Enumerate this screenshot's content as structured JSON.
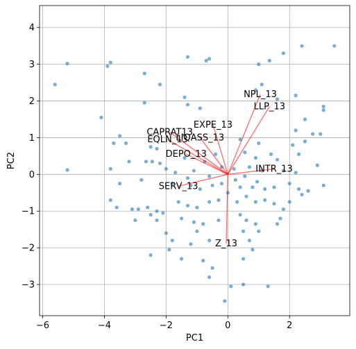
{
  "chart_data": {
    "type": "scatter",
    "subtype": "pca-biplot",
    "title": "",
    "xlabel": "PC1",
    "ylabel": "PC2",
    "xlim": [
      -6.1,
      3.95
    ],
    "ylim": [
      -3.85,
      4.6
    ],
    "xticks": [
      -6,
      -4,
      -2,
      0,
      2
    ],
    "xtick_labels": [
      "−6",
      "−4",
      "−2",
      "0",
      "2"
    ],
    "yticks": [
      -3,
      -2,
      -1,
      0,
      1,
      2,
      3,
      4
    ],
    "ytick_labels": [
      "−3",
      "−2",
      "−1",
      "0",
      "1",
      "2",
      "3",
      "4"
    ],
    "grid": true,
    "point_color": "#1f77b4",
    "arrow_color": "#ff0000",
    "loadings": [
      {
        "name": "NPL_13",
        "x": 1.05,
        "y": 2.18
      },
      {
        "name": "LLP_13",
        "x": 1.35,
        "y": 1.85
      },
      {
        "name": "EXPE_13",
        "x": -0.48,
        "y": 1.35
      },
      {
        "name": "CAPRAT13",
        "x": -1.88,
        "y": 1.15
      },
      {
        "name": "EQLN_13",
        "x": -1.95,
        "y": 0.95
      },
      {
        "name": "LIQASS_13",
        "x": -0.9,
        "y": 1.0
      },
      {
        "name": "DEPO_13",
        "x": -1.35,
        "y": 0.55
      },
      {
        "name": "INTR_13",
        "x": 1.5,
        "y": 0.15
      },
      {
        "name": "SERV_13",
        "x": -1.6,
        "y": -0.32
      },
      {
        "name": "Z_13",
        "x": -0.05,
        "y": -1.88
      }
    ],
    "points": [
      [
        -5.6,
        2.45
      ],
      [
        -5.2,
        3.02
      ],
      [
        -5.2,
        0.12
      ],
      [
        -3.9,
        2.95
      ],
      [
        -3.8,
        3.05
      ],
      [
        -4.1,
        1.55
      ],
      [
        -2.7,
        2.75
      ],
      [
        -2.2,
        2.45
      ],
      [
        -1.3,
        3.2
      ],
      [
        -0.7,
        3.1
      ],
      [
        -0.6,
        3.15
      ],
      [
        -2.7,
        1.95
      ],
      [
        -1.4,
        2.1
      ],
      [
        -1.3,
        1.9
      ],
      [
        -0.9,
        1.8
      ],
      [
        1.0,
        3.0
      ],
      [
        1.35,
        3.1
      ],
      [
        1.8,
        3.3
      ],
      [
        2.4,
        3.5
      ],
      [
        3.45,
        3.5
      ],
      [
        1.1,
        2.45
      ],
      [
        0.9,
        2.3
      ],
      [
        1.6,
        2.05
      ],
      [
        2.2,
        2.15
      ],
      [
        3.1,
        1.75
      ],
      [
        3.1,
        1.85
      ],
      [
        2.5,
        1.5
      ],
      [
        2.2,
        1.2
      ],
      [
        3.0,
        1.1
      ],
      [
        2.75,
        1.1
      ],
      [
        -3.5,
        1.05
      ],
      [
        -3.3,
        0.85
      ],
      [
        -3.7,
        0.85
      ],
      [
        -2.5,
        0.75
      ],
      [
        -2.3,
        0.7
      ],
      [
        -2.65,
        0.35
      ],
      [
        -2.45,
        0.35
      ],
      [
        -2.2,
        0.3
      ],
      [
        -1.4,
        0.45
      ],
      [
        -0.75,
        0.35
      ],
      [
        -0.4,
        0.55
      ],
      [
        0.4,
        0.95
      ],
      [
        0.55,
        0.6
      ],
      [
        0.9,
        0.45
      ],
      [
        1.6,
        0.4
      ],
      [
        2.1,
        0.8
      ],
      [
        2.3,
        0.55
      ],
      [
        1.4,
        0.55
      ],
      [
        1.0,
        0.85
      ],
      [
        2.5,
        0.9
      ],
      [
        -3.2,
        0.35
      ],
      [
        -3.8,
        0.15
      ],
      [
        -3.5,
        -0.25
      ],
      [
        -2.8,
        -0.15
      ],
      [
        -1.8,
        -0.25
      ],
      [
        -1.3,
        -0.1
      ],
      [
        -0.6,
        -0.05
      ],
      [
        -0.2,
        -0.25
      ],
      [
        0.25,
        -0.15
      ],
      [
        0.55,
        -0.05
      ],
      [
        0.95,
        -0.2
      ],
      [
        1.2,
        -0.4
      ],
      [
        1.5,
        -0.35
      ],
      [
        2.0,
        -0.25
      ],
      [
        2.3,
        -0.4
      ],
      [
        2.6,
        -0.45
      ],
      [
        3.1,
        -0.3
      ],
      [
        2.9,
        0.25
      ],
      [
        -3.8,
        -0.7
      ],
      [
        -3.6,
        -0.9
      ],
      [
        -3.1,
        -0.95
      ],
      [
        -2.9,
        -0.95
      ],
      [
        -2.6,
        -0.9
      ],
      [
        -2.3,
        -1.0
      ],
      [
        -2.1,
        -1.05
      ],
      [
        -1.6,
        -0.75
      ],
      [
        -1.3,
        -0.85
      ],
      [
        -1.0,
        -0.9
      ],
      [
        -0.6,
        -0.75
      ],
      [
        -0.3,
        -0.7
      ],
      [
        0.3,
        -0.75
      ],
      [
        0.6,
        -0.6
      ],
      [
        0.9,
        -0.75
      ],
      [
        1.2,
        -0.7
      ],
      [
        1.5,
        -0.8
      ],
      [
        1.8,
        -0.95
      ],
      [
        2.0,
        -0.75
      ],
      [
        2.4,
        -0.55
      ],
      [
        1.7,
        -1.2
      ],
      [
        1.6,
        -1.35
      ],
      [
        -3.0,
        -1.25
      ],
      [
        -2.5,
        -1.1
      ],
      [
        -2.3,
        -1.25
      ],
      [
        -1.5,
        -1.2
      ],
      [
        -1.1,
        -1.3
      ],
      [
        -0.8,
        -1.35
      ],
      [
        -0.3,
        -1.25
      ],
      [
        0.4,
        -1.1
      ],
      [
        0.6,
        -1.25
      ],
      [
        0.9,
        -1.35
      ],
      [
        1.0,
        -1.55
      ],
      [
        0.5,
        -1.55
      ],
      [
        0.7,
        -1.8
      ],
      [
        -1.8,
        -1.8
      ],
      [
        -1.2,
        -1.9
      ],
      [
        -2.0,
        -1.6
      ],
      [
        -1.0,
        -1.55
      ],
      [
        -0.6,
        -1.8
      ],
      [
        0.8,
        -2.05
      ],
      [
        0.5,
        -2.3
      ],
      [
        -2.5,
        -2.2
      ],
      [
        -1.9,
        -2.05
      ],
      [
        -1.5,
        -2.3
      ],
      [
        -0.8,
        -2.35
      ],
      [
        -0.5,
        -2.55
      ],
      [
        -0.6,
        -2.8
      ],
      [
        0.1,
        -3.05
      ],
      [
        0.5,
        -3.0
      ],
      [
        1.3,
        -3.05
      ],
      [
        -0.1,
        -3.45
      ],
      [
        -1.2,
        -0.3
      ],
      [
        -0.9,
        -0.4
      ],
      [
        -0.5,
        -0.3
      ],
      [
        0.0,
        -0.5
      ],
      [
        0.2,
        0.15
      ],
      [
        -0.2,
        0.2
      ],
      [
        0.7,
        0.2
      ],
      [
        1.1,
        0.1
      ],
      [
        1.8,
        0.1
      ],
      [
        2.2,
        0.05
      ],
      [
        -1.7,
        0.05
      ],
      [
        -2.0,
        0.15
      ],
      [
        -1.1,
        0.1
      ],
      [
        0.4,
        -0.35
      ],
      [
        0.8,
        -0.35
      ]
    ]
  }
}
